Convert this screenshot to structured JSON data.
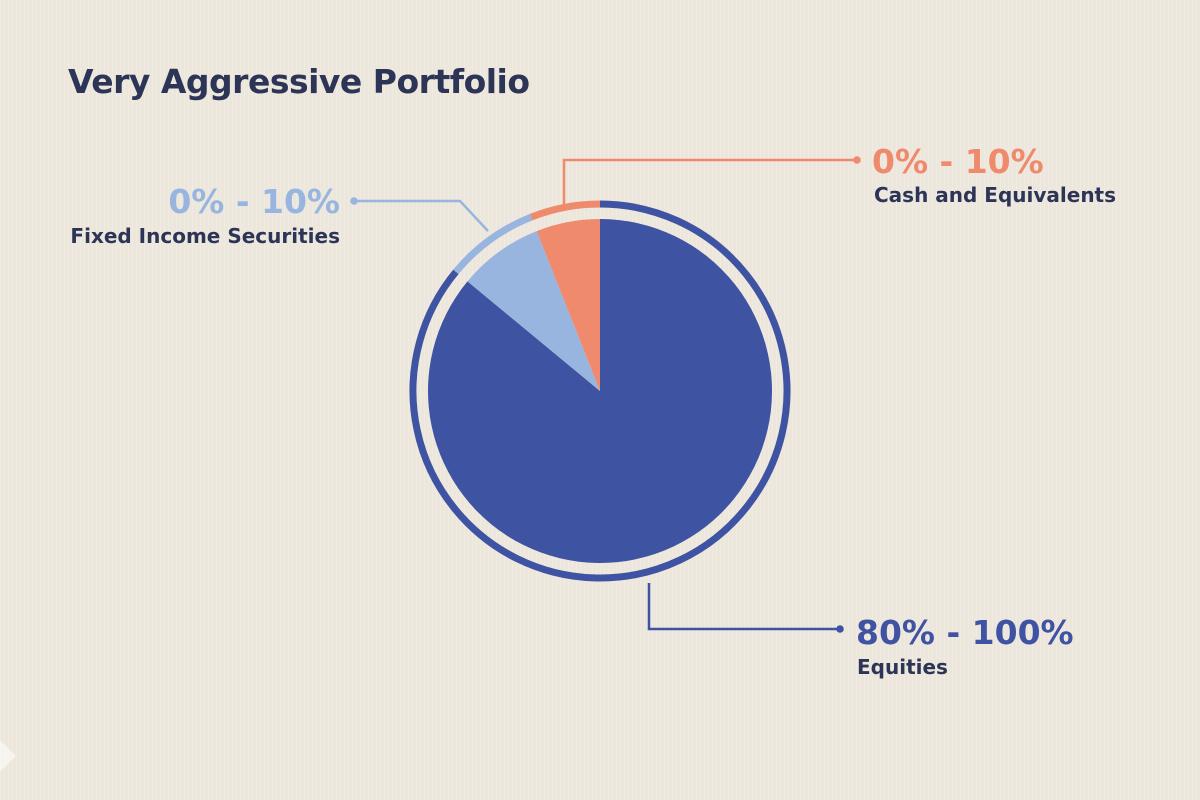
{
  "chart_data": {
    "type": "pie",
    "title": "Very Aggressive Portfolio",
    "start_angle_deg": 0,
    "direction": "clockwise",
    "slices": [
      {
        "label": "Equities",
        "range_label": "80% - 100%",
        "value": 86,
        "color": "#3f53a3"
      },
      {
        "label": "Fixed Income Securities",
        "range_label": "0% - 10%",
        "value": 8,
        "color": "#98b5e0"
      },
      {
        "label": "Cash and Equivalents",
        "range_label": "0% - 10%",
        "value": 6,
        "color": "#f08a6c"
      }
    ]
  },
  "colors": {
    "background": "#ece6dc",
    "title_text": "#2d3557",
    "category_text": "#2d3557"
  }
}
